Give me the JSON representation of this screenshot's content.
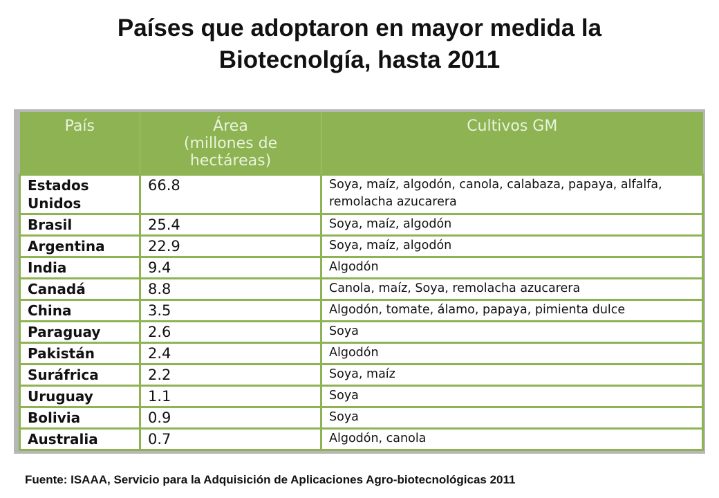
{
  "title": {
    "line1": "Países que adoptaron en mayor medida la",
    "line2": "Biotecnolgía, hasta 2011"
  },
  "table": {
    "headers": {
      "country": "País",
      "area_line1": "Área",
      "area_line2": "(millones de",
      "area_line3": "hectáreas)",
      "crops": "Cultivos GM"
    },
    "rows": [
      {
        "country": "Estados Unidos",
        "area": "66.8",
        "crops": "Soya, maíz, algodón, canola, calabaza, papaya, alfalfa, remolacha azucarera"
      },
      {
        "country": "Brasil",
        "area": "25.4",
        "crops": "Soya, maíz, algodón"
      },
      {
        "country": "Argentina",
        "area": "22.9",
        "crops": "Soya, maíz, algodón"
      },
      {
        "country": "India",
        "area": "9.4",
        "crops": "Algodón"
      },
      {
        "country": "Canadá",
        "area": "8.8",
        "crops": "Canola, maíz, Soya, remolacha azucarera"
      },
      {
        "country": "China",
        "area": "3.5",
        "crops": "Algodón, tomate, álamo, papaya, pimienta dulce"
      },
      {
        "country": "Paraguay",
        "area": "2.6",
        "crops": "Soya"
      },
      {
        "country": "Pakistán",
        "area": "2.4",
        "crops": "Algodón"
      },
      {
        "country": "Suráfrica",
        "area": "2.2",
        "crops": "Soya, maíz"
      },
      {
        "country": "Uruguay",
        "area": "1.1",
        "crops": "Soya"
      },
      {
        "country": "Bolivia",
        "area": "0.9",
        "crops": "Soya"
      },
      {
        "country": "Australia",
        "area": "0.7",
        "crops": "Algodón, canola"
      }
    ]
  },
  "source": "Fuente: ISAAA, Servicio para la Adquisición de Aplicaciones Agro-biotecnológicas 2011",
  "colors": {
    "header_green": "#8db352",
    "frame_gray": "#b7b7b7"
  }
}
